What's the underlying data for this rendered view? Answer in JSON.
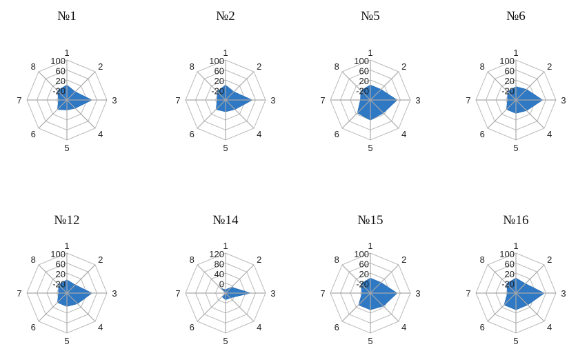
{
  "colors": {
    "fill": "#2e78c4",
    "ring": "#b9b9b9",
    "spoke": "#a9a9a9",
    "text": "#222222"
  },
  "chart_data": [
    {
      "type": "radar",
      "title": "№1",
      "categories": [
        "1",
        "2",
        "3",
        "4",
        "5",
        "6",
        "7",
        "8"
      ],
      "ticks": [
        "-20",
        "20",
        "60",
        "100"
      ],
      "range": [
        -20,
        100
      ],
      "values": [
        25,
        15,
        55,
        15,
        10,
        20,
        5,
        20
      ]
    },
    {
      "type": "radar",
      "title": "№2",
      "categories": [
        "1",
        "2",
        "3",
        "4",
        "5",
        "6",
        "7",
        "8"
      ],
      "ticks": [
        "-20",
        "20",
        "60",
        "100"
      ],
      "range": [
        -20,
        100
      ],
      "values": [
        25,
        15,
        60,
        20,
        15,
        20,
        5,
        15
      ]
    },
    {
      "type": "radar",
      "title": "№5",
      "categories": [
        "1",
        "2",
        "3",
        "4",
        "5",
        "6",
        "7",
        "8"
      ],
      "ticks": [
        "-20",
        "20",
        "60",
        "100"
      ],
      "range": [
        -20,
        100
      ],
      "values": [
        25,
        25,
        60,
        35,
        40,
        35,
        10,
        20
      ]
    },
    {
      "type": "radar",
      "title": "№6",
      "categories": [
        "1",
        "2",
        "3",
        "4",
        "5",
        "6",
        "7",
        "8"
      ],
      "ticks": [
        "-20",
        "20",
        "60",
        "100"
      ],
      "range": [
        -20,
        100
      ],
      "values": [
        20,
        25,
        60,
        25,
        20,
        20,
        5,
        15
      ]
    },
    {
      "type": "radar",
      "title": "№12",
      "categories": [
        "1",
        "2",
        "3",
        "4",
        "5",
        "6",
        "7",
        "8"
      ],
      "ticks": [
        "-20",
        "20",
        "60",
        "100"
      ],
      "range": [
        -20,
        100
      ],
      "values": [
        20,
        15,
        55,
        25,
        20,
        20,
        5,
        15
      ]
    },
    {
      "type": "radar",
      "title": "№14",
      "categories": [
        "1",
        "2",
        "3",
        "4",
        "5",
        "6",
        "7",
        "8"
      ],
      "ticks": [
        "0",
        "40",
        "80",
        "120"
      ],
      "range": [
        0,
        120
      ],
      "values": [
        10,
        25,
        75,
        20,
        20,
        15,
        0,
        20
      ]
    },
    {
      "type": "radar",
      "title": "№15",
      "categories": [
        "1",
        "2",
        "3",
        "4",
        "5",
        "6",
        "7",
        "8"
      ],
      "ticks": [
        "-20",
        "20",
        "60",
        "100"
      ],
      "range": [
        -20,
        100
      ],
      "values": [
        25,
        25,
        60,
        35,
        30,
        30,
        5,
        20
      ]
    },
    {
      "type": "radar",
      "title": "№16",
      "categories": [
        "1",
        "2",
        "3",
        "4",
        "5",
        "6",
        "7",
        "8"
      ],
      "ticks": [
        "-20",
        "20",
        "60",
        "100"
      ],
      "range": [
        -20,
        100
      ],
      "values": [
        25,
        20,
        65,
        30,
        30,
        30,
        5,
        20
      ]
    }
  ]
}
